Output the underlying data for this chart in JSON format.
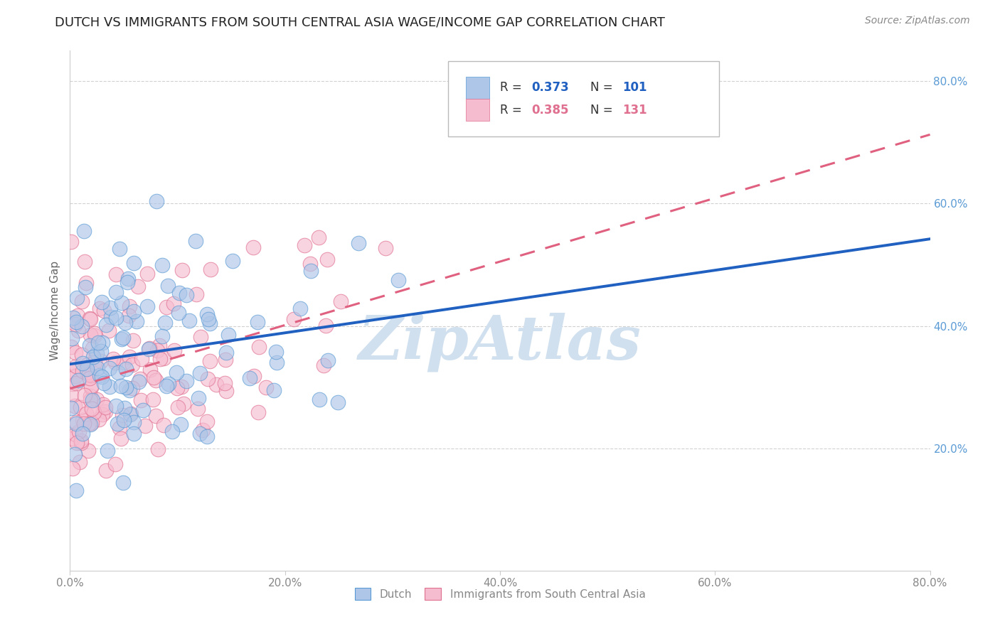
{
  "title": "DUTCH VS IMMIGRANTS FROM SOUTH CENTRAL ASIA WAGE/INCOME GAP CORRELATION CHART",
  "source": "Source: ZipAtlas.com",
  "ylabel": "Wage/Income Gap",
  "x_tick_labels": [
    "0.0%",
    "20.0%",
    "40.0%",
    "60.0%",
    "80.0%"
  ],
  "y_tick_labels_right": [
    "20.0%",
    "40.0%",
    "60.0%",
    "80.0%"
  ],
  "legend_bottom": [
    "Dutch",
    "Immigrants from South Central Asia"
  ],
  "dutch_R": 0.373,
  "dutch_N": 101,
  "immigrant_R": 0.385,
  "immigrant_N": 131,
  "dutch_color": "#aec6e8",
  "dutch_color_edge": "#5b9bd5",
  "immigrant_color": "#f5bcd0",
  "immigrant_color_edge": "#e07090",
  "dutch_line_color": "#2060c0",
  "immigrant_line_color": "#e06080",
  "background_color": "#ffffff",
  "watermark_color": "#d0e0ef",
  "xlim": [
    0.0,
    0.8
  ],
  "ylim": [
    0.0,
    0.85
  ],
  "title_fontsize": 13,
  "source_fontsize": 10,
  "grid_color": "#cccccc",
  "tick_color": "#888888",
  "ylabel_color": "#666666",
  "right_tick_color": "#5b9bd5"
}
